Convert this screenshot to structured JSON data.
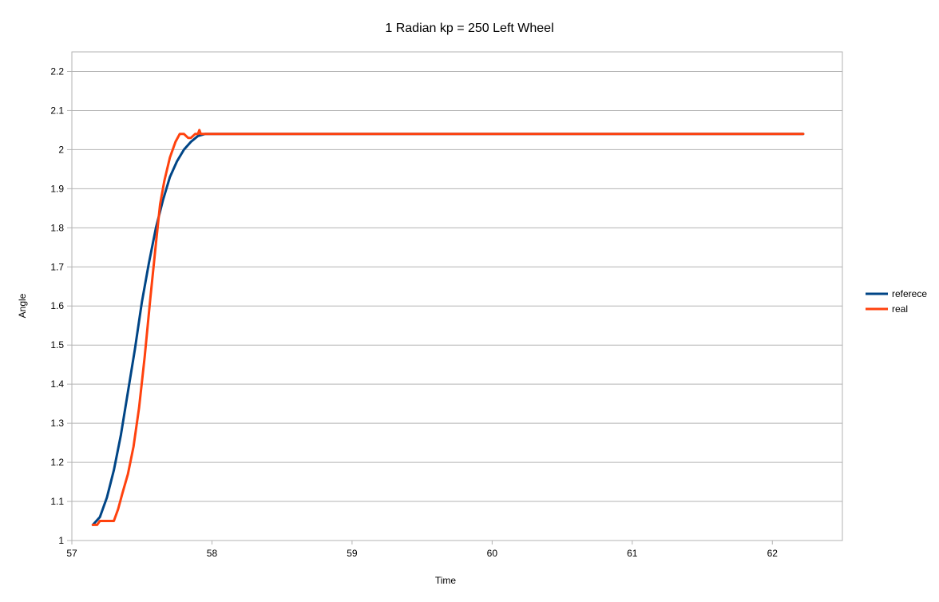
{
  "chart_data": {
    "type": "line",
    "title": "1 Radian kp = 250 Left Wheel",
    "xlabel": "Time",
    "ylabel": "Angle",
    "xlim": [
      57,
      62.5
    ],
    "ylim": [
      1,
      2.25
    ],
    "x_ticks": [
      "57",
      "58",
      "59",
      "60",
      "61",
      "62"
    ],
    "y_ticks": [
      "1",
      "1.1",
      "1.2",
      "1.3",
      "1.4",
      "1.5",
      "1.6",
      "1.7",
      "1.8",
      "1.9",
      "2",
      "2.1",
      "2.2"
    ],
    "grid": "horizontal",
    "legend_position": "right",
    "series": [
      {
        "name": "referece",
        "color": "#004586",
        "x": [
          57.15,
          57.2,
          57.25,
          57.3,
          57.35,
          57.4,
          57.45,
          57.5,
          57.55,
          57.6,
          57.65,
          57.7,
          57.75,
          57.8,
          57.85,
          57.9,
          57.95,
          58.0,
          58.5,
          59.0,
          59.5,
          60.0,
          60.5,
          61.0,
          61.5,
          62.0,
          62.22
        ],
        "values": [
          1.04,
          1.06,
          1.11,
          1.18,
          1.27,
          1.38,
          1.49,
          1.61,
          1.71,
          1.8,
          1.87,
          1.93,
          1.97,
          2.0,
          2.02,
          2.035,
          2.04,
          2.04,
          2.04,
          2.04,
          2.04,
          2.04,
          2.04,
          2.04,
          2.04,
          2.04,
          2.04
        ]
      },
      {
        "name": "real",
        "color": "#ff420e",
        "x": [
          57.15,
          57.18,
          57.2,
          57.25,
          57.3,
          57.33,
          57.36,
          57.4,
          57.44,
          57.48,
          57.52,
          57.56,
          57.6,
          57.63,
          57.66,
          57.7,
          57.74,
          57.77,
          57.8,
          57.83,
          57.85,
          57.88,
          57.9,
          57.91,
          57.92,
          57.93,
          57.95,
          58.0,
          58.5,
          59.0,
          59.5,
          60.0,
          60.5,
          61.0,
          61.5,
          62.0,
          62.22
        ],
        "values": [
          1.04,
          1.04,
          1.05,
          1.05,
          1.05,
          1.08,
          1.12,
          1.17,
          1.24,
          1.34,
          1.47,
          1.62,
          1.76,
          1.86,
          1.92,
          1.98,
          2.02,
          2.04,
          2.04,
          2.03,
          2.03,
          2.04,
          2.04,
          2.05,
          2.04,
          2.04,
          2.04,
          2.04,
          2.04,
          2.04,
          2.04,
          2.04,
          2.04,
          2.04,
          2.04,
          2.04,
          2.04
        ]
      }
    ]
  }
}
